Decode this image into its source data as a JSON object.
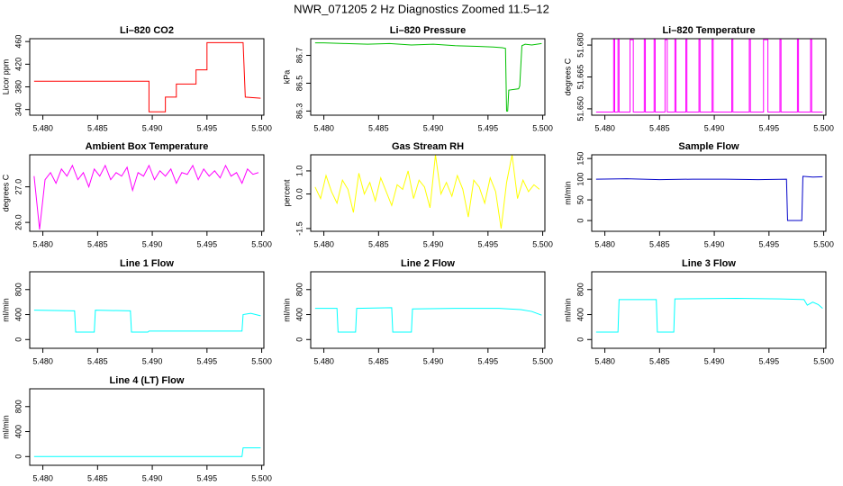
{
  "title": "NWR_071205  2 Hz Diagnostics Zoomed 11.5–12",
  "chart_data": [
    {
      "type": "line",
      "title": "Li–820 CO2",
      "ylabel": "Licor ppm",
      "color": "#ff0000",
      "x": [
        5.4792,
        5.4897,
        5.4897,
        5.4912,
        5.4912,
        5.4922,
        5.4922,
        5.494,
        5.494,
        5.495,
        5.495,
        5.4983,
        5.4985,
        5.4999
      ],
      "values": [
        390,
        390,
        336,
        336,
        362,
        362,
        385,
        385,
        410,
        410,
        458,
        458,
        362,
        360
      ],
      "xlim": [
        5.4788,
        5.5002
      ],
      "xticks": [
        {
          "value": 5.48,
          "label": "5.480"
        },
        5.485,
        {
          "value": 5.49,
          "label": "5.490"
        },
        5.495,
        {
          "value": 5.5,
          "label": "5.500"
        }
      ],
      "ylim": [
        330,
        465
      ],
      "yticks": [
        340,
        380,
        420,
        460
      ]
    },
    {
      "type": "line",
      "title": "Li–820 Pressure",
      "ylabel": "kPa",
      "color": "#00c000",
      "x": [
        5.4792,
        5.48,
        5.482,
        5.484,
        5.486,
        5.488,
        5.49,
        5.492,
        5.494,
        5.4955,
        5.4963,
        5.4966,
        5.4967,
        5.4968,
        5.4969,
        5.4978,
        5.4979,
        5.4981,
        5.4984,
        5.499,
        5.4999
      ],
      "values": [
        86.79,
        86.79,
        86.785,
        86.78,
        86.785,
        86.775,
        86.78,
        86.77,
        86.765,
        86.76,
        86.755,
        86.75,
        86.3,
        86.3,
        86.45,
        86.46,
        86.48,
        86.77,
        86.78,
        86.775,
        86.785
      ],
      "xlim": [
        5.4788,
        5.5002
      ],
      "xticks": [
        {
          "value": 5.48,
          "label": "5.480"
        },
        5.485,
        {
          "value": 5.49,
          "label": "5.490"
        },
        5.495,
        {
          "value": 5.5,
          "label": "5.500"
        }
      ],
      "ylim": [
        86.27,
        86.82
      ],
      "yticks": [
        86.3,
        86.5,
        86.7
      ]
    },
    {
      "type": "line",
      "title": "Li–820 Temperature",
      "ylabel": "degrees C",
      "color": "#ff00ff",
      "x": [
        5.4792,
        5.4808,
        5.4808,
        5.4809,
        5.4809,
        5.4812,
        5.4812,
        5.4813,
        5.4813,
        5.4823,
        5.4823,
        5.4826,
        5.4826,
        5.4836,
        5.4836,
        5.4837,
        5.4837,
        5.4845,
        5.4845,
        5.4846,
        5.4846,
        5.4855,
        5.4855,
        5.4857,
        5.4857,
        5.4864,
        5.4864,
        5.4865,
        5.4865,
        5.4874,
        5.4874,
        5.4875,
        5.4875,
        5.4886,
        5.4886,
        5.4887,
        5.4887,
        5.4898,
        5.4898,
        5.4899,
        5.4899,
        5.4916,
        5.4916,
        5.4917,
        5.4917,
        5.4932,
        5.4932,
        5.4933,
        5.4933,
        5.4945,
        5.4945,
        5.4949,
        5.4949,
        5.496,
        5.496,
        5.4961,
        5.4961,
        5.4976,
        5.4976,
        5.4977,
        5.4977,
        5.4988,
        5.4988,
        5.4989,
        5.4989,
        5.4999
      ],
      "values": [
        51.6485,
        51.6485,
        51.6825,
        51.6825,
        51.6485,
        51.6485,
        51.6825,
        51.6825,
        51.6485,
        51.6485,
        51.6825,
        51.6825,
        51.6485,
        51.6485,
        51.6825,
        51.6825,
        51.6485,
        51.6485,
        51.6825,
        51.6825,
        51.6485,
        51.6485,
        51.6825,
        51.6825,
        51.6485,
        51.6485,
        51.6825,
        51.6825,
        51.6485,
        51.6485,
        51.6825,
        51.6825,
        51.6485,
        51.6485,
        51.6825,
        51.6825,
        51.6485,
        51.6485,
        51.6825,
        51.6825,
        51.6485,
        51.6485,
        51.6825,
        51.6825,
        51.6485,
        51.6485,
        51.6825,
        51.6825,
        51.6485,
        51.6485,
        51.6825,
        51.6825,
        51.6485,
        51.6485,
        51.6825,
        51.6825,
        51.6485,
        51.6485,
        51.6825,
        51.6825,
        51.6485,
        51.6485,
        51.6825,
        51.6825,
        51.6485,
        51.6485
      ],
      "xlim": [
        5.4788,
        5.5002
      ],
      "xticks": [
        {
          "value": 5.48,
          "label": "5.480"
        },
        5.485,
        {
          "value": 5.49,
          "label": "5.490"
        },
        5.495,
        {
          "value": 5.5,
          "label": "5.500"
        }
      ],
      "ylim": [
        51.647,
        51.683
      ],
      "yticks": [
        {
          "value": 51.65,
          "label": "51.650"
        },
        51.665,
        {
          "value": 51.68,
          "label": "51.680"
        }
      ]
    },
    {
      "type": "line",
      "title": "Ambient Box Temperature",
      "ylabel": "degrees C",
      "color": "#ff00ff",
      "x": [
        5.4792,
        5.4797,
        5.4802,
        5.4807,
        5.4812,
        5.4817,
        5.4822,
        5.4827,
        5.4832,
        5.4837,
        5.4842,
        5.4847,
        5.4852,
        5.4857,
        5.4862,
        5.4867,
        5.4872,
        5.4877,
        5.4882,
        5.4887,
        5.4892,
        5.4897,
        5.4902,
        5.4907,
        5.4912,
        5.4917,
        5.4922,
        5.4927,
        5.4932,
        5.4937,
        5.4942,
        5.4947,
        5.4952,
        5.4957,
        5.4962,
        5.4967,
        5.4972,
        5.4977,
        5.4982,
        5.4987,
        5.4992,
        5.4997
      ],
      "values": [
        27.3,
        25.8,
        27.2,
        27.4,
        27.1,
        27.5,
        27.3,
        27.6,
        27.2,
        27.4,
        27.0,
        27.5,
        27.3,
        27.6,
        27.2,
        27.4,
        27.3,
        27.55,
        26.9,
        27.4,
        27.3,
        27.6,
        27.2,
        27.45,
        27.3,
        27.5,
        27.1,
        27.4,
        27.35,
        27.6,
        27.2,
        27.5,
        27.3,
        27.45,
        27.25,
        27.6,
        27.3,
        27.4,
        27.1,
        27.5,
        27.35,
        27.4
      ],
      "xlim": [
        5.4788,
        5.5002
      ],
      "xticks": [
        {
          "value": 5.48,
          "label": "5.480"
        },
        5.485,
        {
          "value": 5.49,
          "label": "5.490"
        },
        5.495,
        {
          "value": 5.5,
          "label": "5.500"
        }
      ],
      "ylim": [
        25.75,
        27.9
      ],
      "yticks": [
        {
          "value": 26,
          "label": "26.0"
        },
        {
          "value": 27,
          "label": "27.0"
        }
      ]
    },
    {
      "type": "line",
      "title": "Gas Stream RH",
      "ylabel": "percent",
      "color": "#ffff00",
      "x": [
        5.4792,
        5.4797,
        5.4802,
        5.4807,
        5.4812,
        5.4817,
        5.4822,
        5.4827,
        5.4832,
        5.4837,
        5.4842,
        5.4847,
        5.4852,
        5.4857,
        5.4862,
        5.4867,
        5.4872,
        5.4877,
        5.4882,
        5.4887,
        5.4892,
        5.4897,
        5.4902,
        5.4907,
        5.4912,
        5.4917,
        5.4922,
        5.4927,
        5.4932,
        5.4937,
        5.4942,
        5.4947,
        5.4952,
        5.4957,
        5.4962,
        5.4967,
        5.4972,
        5.4977,
        5.4982,
        5.4987,
        5.4992,
        5.4997
      ],
      "values": [
        0.3,
        -0.2,
        0.8,
        0.1,
        -0.4,
        0.6,
        0.2,
        -0.8,
        0.9,
        0.0,
        0.5,
        -0.3,
        0.7,
        0.1,
        -0.5,
        0.4,
        0.2,
        1.0,
        -0.2,
        0.6,
        0.3,
        -0.6,
        1.7,
        0.0,
        0.5,
        -0.1,
        0.8,
        0.2,
        -1.0,
        0.6,
        0.3,
        -0.4,
        0.7,
        0.1,
        -1.5,
        0.5,
        1.7,
        -0.2,
        0.6,
        0.1,
        0.4,
        0.2
      ],
      "xlim": [
        5.4788,
        5.5002
      ],
      "xticks": [
        {
          "value": 5.48,
          "label": "5.480"
        },
        5.485,
        {
          "value": 5.49,
          "label": "5.490"
        },
        5.495,
        {
          "value": 5.5,
          "label": "5.500"
        }
      ],
      "ylim": [
        -1.62,
        1.7
      ],
      "yticks": [
        -1.5,
        {
          "value": 0,
          "label": "0.0"
        },
        {
          "value": 1,
          "label": "1.0"
        }
      ]
    },
    {
      "type": "line",
      "title": "Sample Flow",
      "ylabel": "ml/min",
      "color": "#0000c8",
      "x": [
        5.4792,
        5.482,
        5.485,
        5.488,
        5.491,
        5.494,
        5.4966,
        5.4967,
        5.498,
        5.4981,
        5.499,
        5.4999
      ],
      "values": [
        100,
        101,
        99,
        100,
        100,
        99,
        100,
        0,
        0,
        107,
        105,
        106
      ],
      "xlim": [
        5.4788,
        5.5002
      ],
      "xticks": [
        {
          "value": 5.48,
          "label": "5.480"
        },
        5.485,
        {
          "value": 5.49,
          "label": "5.490"
        },
        5.495,
        {
          "value": 5.5,
          "label": "5.500"
        }
      ],
      "ylim": [
        -26,
        159
      ],
      "yticks": [
        0,
        50,
        100,
        150
      ]
    },
    {
      "type": "line",
      "title": "Line 1 Flow",
      "ylabel": "ml/min",
      "color": "#00ffff",
      "x": [
        5.4792,
        5.4829,
        5.483,
        5.4847,
        5.4848,
        5.488,
        5.4881,
        5.4896,
        5.4897,
        5.4982,
        5.4983,
        5.499,
        5.4999
      ],
      "values": [
        470,
        460,
        120,
        120,
        470,
        460,
        120,
        120,
        135,
        135,
        400,
        420,
        380
      ],
      "xlim": [
        5.4788,
        5.5002
      ],
      "xticks": [
        {
          "value": 5.48,
          "label": "5.480"
        },
        5.485,
        {
          "value": 5.49,
          "label": "5.490"
        },
        5.495,
        {
          "value": 5.5,
          "label": "5.500"
        }
      ],
      "ylim": [
        -140,
        1085
      ],
      "yticks": [
        0,
        400,
        800
      ]
    },
    {
      "type": "line",
      "title": "Line 2 Flow",
      "ylabel": "ml/min",
      "color": "#00ffff",
      "x": [
        5.4792,
        5.4812,
        5.4813,
        5.4829,
        5.483,
        5.4862,
        5.4863,
        5.488,
        5.4881,
        5.492,
        5.496,
        5.498,
        5.499,
        5.4999
      ],
      "values": [
        500,
        500,
        120,
        120,
        500,
        510,
        120,
        120,
        490,
        500,
        500,
        480,
        450,
        390
      ],
      "xlim": [
        5.4788,
        5.5002
      ],
      "xticks": [
        {
          "value": 5.48,
          "label": "5.480"
        },
        5.485,
        {
          "value": 5.49,
          "label": "5.490"
        },
        5.495,
        {
          "value": 5.5,
          "label": "5.500"
        }
      ],
      "ylim": [
        -140,
        1085
      ],
      "yticks": [
        0,
        400,
        800
      ]
    },
    {
      "type": "line",
      "title": "Line 3 Flow",
      "ylabel": "ml/min",
      "color": "#00ffff",
      "x": [
        5.4792,
        5.4812,
        5.4813,
        5.4847,
        5.4848,
        5.4863,
        5.4864,
        5.492,
        5.496,
        5.4982,
        5.4985,
        5.499,
        5.4995,
        5.4999
      ],
      "values": [
        120,
        120,
        640,
        640,
        120,
        120,
        650,
        660,
        650,
        640,
        550,
        600,
        560,
        500
      ],
      "xlim": [
        5.4788,
        5.5002
      ],
      "xticks": [
        {
          "value": 5.48,
          "label": "5.480"
        },
        5.485,
        {
          "value": 5.49,
          "label": "5.490"
        },
        5.495,
        {
          "value": 5.5,
          "label": "5.500"
        }
      ],
      "ylim": [
        -140,
        1085
      ],
      "yticks": [
        0,
        400,
        800
      ]
    },
    {
      "type": "line",
      "title": "Line 4 (LT) Flow",
      "ylabel": "ml/min",
      "color": "#00ffff",
      "x": [
        5.4792,
        5.4982,
        5.4983,
        5.4999
      ],
      "values": [
        0,
        0,
        140,
        140
      ],
      "xlim": [
        5.4788,
        5.5002
      ],
      "xticks": [
        {
          "value": 5.48,
          "label": "5.480"
        },
        5.485,
        {
          "value": 5.49,
          "label": "5.490"
        },
        5.495,
        {
          "value": 5.5,
          "label": "5.500"
        }
      ],
      "ylim": [
        -140,
        1085
      ],
      "yticks": [
        0,
        400,
        800
      ]
    }
  ]
}
